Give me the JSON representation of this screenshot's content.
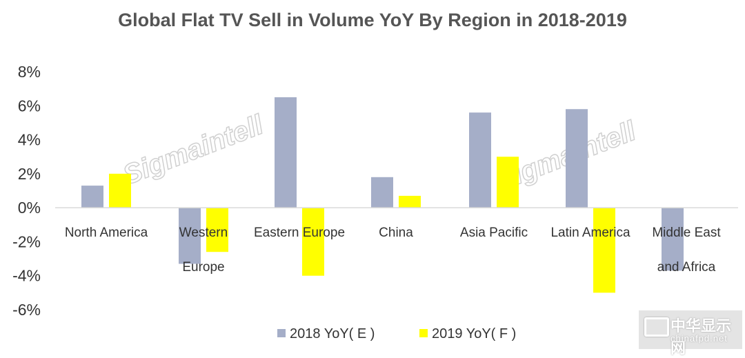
{
  "chart_data": {
    "type": "bar",
    "title": "Global Flat TV Sell in Volume YoY By Region in 2018-2019",
    "categories": [
      [
        "North America"
      ],
      [
        "Western",
        "Europe"
      ],
      [
        "Eastern Europe"
      ],
      [
        "China"
      ],
      [
        "Asia Pacific"
      ],
      [
        "Latin America"
      ],
      [
        "Middle East",
        "and Africa"
      ]
    ],
    "series": [
      {
        "name": "2018 YoY( E )",
        "color": "#a5aec8",
        "values": [
          1.3,
          -3.3,
          6.5,
          1.8,
          5.6,
          5.8,
          -3.7
        ]
      },
      {
        "name": "2019 YoY( F )",
        "color": "#ffff00",
        "values": [
          2.0,
          -2.6,
          -4.0,
          0.7,
          3.0,
          -5.0,
          null
        ]
      }
    ],
    "ylim": [
      -6,
      8
    ],
    "yticks": [
      "8%",
      "6%",
      "4%",
      "2%",
      "0%",
      "-2%",
      "-4%",
      "-6%"
    ],
    "ytick_values": [
      8,
      6,
      4,
      2,
      0,
      -2,
      -4,
      -6
    ],
    "legend_position": "bottom",
    "grid": false
  },
  "watermark": {
    "text": "Sigmaintell"
  },
  "logo": {
    "main": "中华显示网",
    "sub": "chinafpd.net",
    "mark": "FPD"
  }
}
